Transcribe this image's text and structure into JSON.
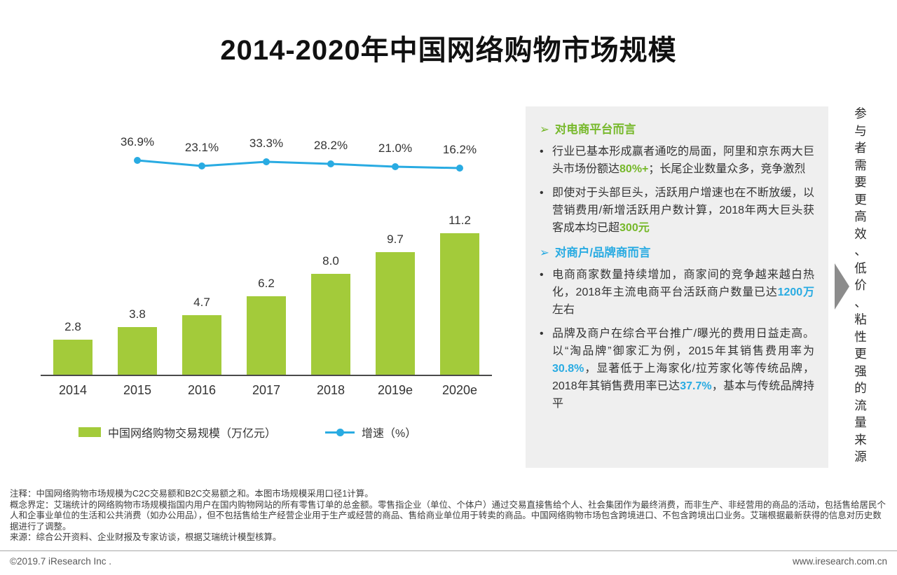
{
  "title": "2014-2020年中国网络购物市场规模",
  "chart_data": {
    "type": "bar",
    "categories": [
      "2014",
      "2015",
      "2016",
      "2017",
      "2018",
      "2019e",
      "2020e"
    ],
    "series": [
      {
        "name": "中国网络购物交易规模（万亿元）",
        "type": "bar",
        "values": [
          2.8,
          3.8,
          4.7,
          6.2,
          8.0,
          9.7,
          11.2
        ],
        "labels": [
          "2.8",
          "3.8",
          "4.7",
          "6.2",
          "8.0",
          "9.7",
          "11.2"
        ],
        "color": "#a3cb3a"
      },
      {
        "name": "增速（%）",
        "type": "line",
        "values": [
          null,
          36.9,
          23.1,
          33.3,
          28.2,
          21.0,
          16.2
        ],
        "labels": [
          null,
          "36.9%",
          "23.1%",
          "33.3%",
          "28.2%",
          "21.0%",
          "16.2%"
        ],
        "color": "#29abe2"
      }
    ],
    "title": "2014-2020年中国网络购物市场规模",
    "xlabel": "",
    "ylabel": "",
    "ylim_left": [
      0,
      12
    ],
    "ylim_right_pct": [
      0,
      40
    ],
    "grid": false,
    "legend_position": "bottom"
  },
  "legend": {
    "bar_label": "中国网络购物交易规模（万亿元）",
    "line_label": "增速（%）"
  },
  "panel": {
    "sections": [
      {
        "marker": "➢",
        "heading": "对电商平台而言",
        "color": "#76b82a",
        "bullets": [
          {
            "segments": [
              {
                "t": "行业已基本形成赢者通吃的局面，阿里和京东两大巨头市场份额达"
              },
              {
                "t": "80%+",
                "hl": true
              },
              {
                "t": "；长尾企业数量众多，竞争激烈"
              }
            ]
          },
          {
            "segments": [
              {
                "t": "即使对于头部巨头，活跃用户增速也在不断放缓，以营销费用/新增活跃用户数计算，2018年两大巨头获客成本均已超"
              },
              {
                "t": "300元",
                "hl": true
              }
            ]
          }
        ]
      },
      {
        "marker": "➢",
        "heading": "对商户/品牌商而言",
        "color": "#29abe2",
        "bullets": [
          {
            "segments": [
              {
                "t": "电商商家数量持续增加，商家间的竞争越来越白热化，2018年主流电商平台活跃商户数量已达"
              },
              {
                "t": "1200万",
                "hl": true
              },
              {
                "t": "左右"
              }
            ]
          },
          {
            "segments": [
              {
                "t": "品牌及商户在综合平台推广/曝光的费用日益走高。以“淘品牌”御家汇为例，2015年其销售费用率为"
              },
              {
                "t": "30.8%",
                "hl": true
              },
              {
                "t": "，显著低于上海家化/拉芳家化等传统品牌，2018年其销售费用率已达"
              },
              {
                "t": "37.7%",
                "hl": true
              },
              {
                "t": "，基本与传统品牌持平"
              }
            ]
          }
        ]
      }
    ]
  },
  "side_note": "参与者需要更高效、低价、粘性更强的流量来源",
  "notes": {
    "line1": "注释：中国网络购物市场规模为C2C交易额和B2C交易额之和。本图市场规模采用口径1计算。",
    "line2": "概念界定：艾瑞统计的网络购物市场规模指国内用户在国内购物网站的所有零售订单的总金额。零售指企业（单位、个体户）通过交易直接售给个人、社会集团作为最终消费，而非生产、非经营用的商品的活动，包括售给居民个人和企事业单位的生活和公共消费（如办公用品），但不包括售给生产经营企业用于生产或经营的商品、售给商业单位用于转卖的商品。中国网络购物市场包含跨境进口、不包含跨境出口业务。艾瑞根据最新获得的信息对历史数据进行了调整。",
    "line3": "来源：综合公开资料、企业财报及专家访谈，根据艾瑞统计模型核算。"
  },
  "footer": {
    "left": "©2019.7 iResearch Inc .",
    "right": "www.iresearch.com.cn"
  },
  "colors": {
    "bar": "#a3cb3a",
    "line": "#29abe2",
    "green_text": "#76b82a",
    "blue_text": "#29abe2",
    "panel_bg": "#efefef",
    "arrow": "#8c8c8c"
  }
}
